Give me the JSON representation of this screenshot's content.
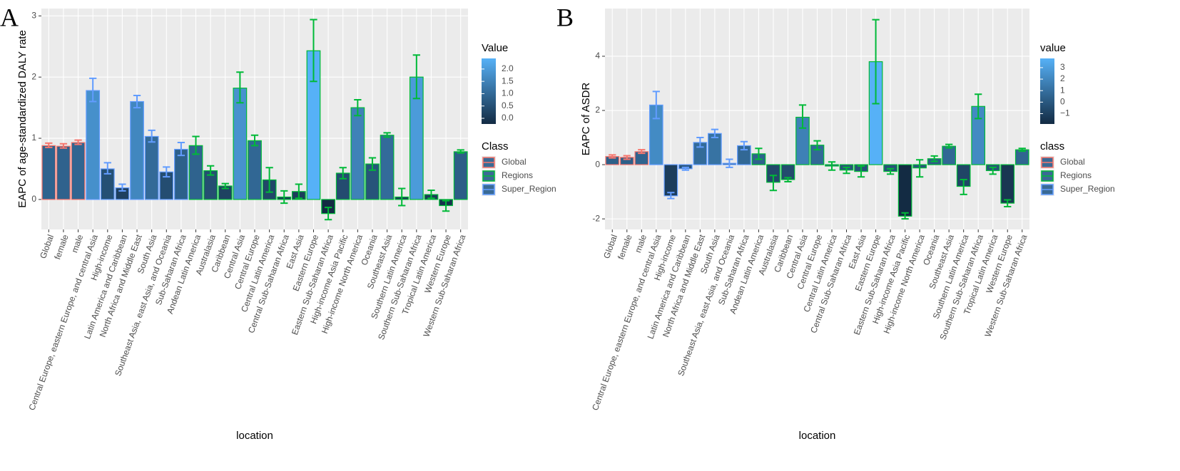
{
  "chart_data": [
    {
      "type": "bar",
      "panel": "A",
      "y_label": "EAPC of age-standardized DALY rate",
      "x_label": "location",
      "categories": [
        "Global",
        "female",
        "male",
        "Central Europe, eastern Europe, and central Asia",
        "High-income",
        "Latin America and Caribbean",
        "North Africa and Middle East",
        "South Asia",
        "Southeast Asia, east Asia, and Oceania",
        "Sub-Saharan Africa",
        "Andean Latin America",
        "Australasia",
        "Caribbean",
        "Central Asia",
        "Central Europe",
        "Central Latin America",
        "Central Sub-Saharan Africa",
        "East Asia",
        "Eastern Europe",
        "Eastern Sub-Saharan Africa",
        "High-income Asia Pacific",
        "High-income North America",
        "Oceania",
        "Southeast Asia",
        "Southern Latin America",
        "Southern Sub-Saharan Africa",
        "Tropical Latin America",
        "Western Europe",
        "Western Sub-Saharan Africa"
      ],
      "class": [
        "Global",
        "Global",
        "Global",
        "Super_Region",
        "Super_Region",
        "Super_Region",
        "Super_Region",
        "Super_Region",
        "Super_Region",
        "Super_Region",
        "Regions",
        "Regions",
        "Regions",
        "Regions",
        "Regions",
        "Regions",
        "Regions",
        "Regions",
        "Regions",
        "Regions",
        "Regions",
        "Regions",
        "Regions",
        "Regions",
        "Regions",
        "Regions",
        "Regions",
        "Regions",
        "Regions"
      ],
      "values": [
        0.88,
        0.87,
        0.93,
        1.78,
        0.5,
        0.19,
        1.6,
        1.03,
        0.45,
        0.82,
        0.88,
        0.47,
        0.22,
        1.82,
        0.96,
        0.32,
        0.04,
        0.13,
        2.43,
        -0.23,
        0.43,
        1.5,
        0.58,
        1.05,
        0.04,
        2.0,
        0.08,
        -0.1,
        0.78
      ],
      "lower": [
        0.85,
        0.84,
        0.9,
        1.6,
        0.42,
        0.14,
        1.5,
        0.94,
        0.37,
        0.72,
        0.74,
        0.4,
        0.18,
        1.58,
        0.88,
        0.12,
        -0.06,
        0.02,
        1.93,
        -0.33,
        0.34,
        1.37,
        0.48,
        1.02,
        -0.1,
        1.65,
        0.02,
        -0.19,
        0.76
      ],
      "upper": [
        0.92,
        0.91,
        0.97,
        1.98,
        0.6,
        0.25,
        1.7,
        1.13,
        0.53,
        0.93,
        1.03,
        0.55,
        0.26,
        2.08,
        1.05,
        0.52,
        0.14,
        0.25,
        2.94,
        -0.13,
        0.52,
        1.63,
        0.68,
        1.09,
        0.18,
        2.36,
        0.15,
        -0.02,
        0.81
      ],
      "ylim": [
        -0.49,
        3.12
      ],
      "yticks": [
        0,
        1,
        2,
        3
      ],
      "grid": true,
      "fill_legend": {
        "title": "Value",
        "low": "#132B43",
        "high": "#56B1F7",
        "ticks": [
          {
            "value": 0,
            "label": "0.0"
          },
          {
            "value": 0.5,
            "label": "0.5"
          },
          {
            "value": 1,
            "label": "1.0"
          },
          {
            "value": 1.5,
            "label": "1.5"
          },
          {
            "value": 2,
            "label": "2.0"
          }
        ]
      },
      "class_legend": {
        "title": "Class",
        "names": [
          "Global",
          "Regions",
          "Super_Region"
        ],
        "colors": [
          "#F8766D",
          "#00BA38",
          "#619CFF"
        ]
      }
    },
    {
      "type": "bar",
      "panel": "B",
      "y_label": "EAPC of ASDR",
      "x_label": "location",
      "categories": [
        "Global",
        "female",
        "male",
        "Central Europe, eastern Europe, and central Asia",
        "High-income",
        "Latin America and Caribbean",
        "North Africa and Middle East",
        "South Asia",
        "Southeast Asia, east Asia, and Oceania",
        "Sub-Saharan Africa",
        "Andean Latin America",
        "Australasia",
        "Caribbean",
        "Central Asia",
        "Central Europe",
        "Central Latin America",
        "Central Sub-Saharan Africa",
        "East Asia",
        "Eastern Europe",
        "Eastern Sub-Saharan Africa",
        "High-income Asia Pacific",
        "High-income North America",
        "Oceania",
        "Southeast Asia",
        "Southern Latin America",
        "Southern Sub-Saharan Africa",
        "Tropical Latin America",
        "Western Europe",
        "Western Sub-Saharan Africa"
      ],
      "class": [
        "Global",
        "Global",
        "Global",
        "Super_Region",
        "Super_Region",
        "Super_Region",
        "Super_Region",
        "Super_Region",
        "Super_Region",
        "Super_Region",
        "Regions",
        "Regions",
        "Regions",
        "Regions",
        "Regions",
        "Regions",
        "Regions",
        "Regions",
        "Regions",
        "Regions",
        "Regions",
        "Regions",
        "Regions",
        "Regions",
        "Regions",
        "Regions",
        "Regions",
        "Regions",
        "Regions"
      ],
      "values": [
        0.3,
        0.27,
        0.48,
        2.2,
        -1.15,
        -0.15,
        0.82,
        1.15,
        0.05,
        0.7,
        0.4,
        -0.65,
        -0.55,
        1.75,
        0.72,
        -0.05,
        -0.2,
        -0.25,
        3.8,
        -0.25,
        -1.9,
        -0.12,
        0.22,
        0.68,
        -0.8,
        2.15,
        -0.22,
        -1.42,
        0.55
      ],
      "lower": [
        0.25,
        0.2,
        0.42,
        1.7,
        -1.25,
        -0.2,
        0.65,
        1.0,
        -0.1,
        0.55,
        0.2,
        -0.95,
        -0.63,
        1.35,
        0.55,
        -0.2,
        -0.32,
        -0.45,
        2.25,
        -0.35,
        -2.0,
        -0.45,
        0.12,
        0.62,
        -1.1,
        1.7,
        -0.35,
        -1.55,
        0.5
      ],
      "upper": [
        0.36,
        0.33,
        0.55,
        2.7,
        -1.03,
        -0.1,
        1.0,
        1.3,
        0.2,
        0.85,
        0.6,
        -0.4,
        -0.48,
        2.2,
        0.88,
        0.1,
        -0.1,
        -0.05,
        5.35,
        -0.15,
        -1.78,
        0.18,
        0.32,
        0.75,
        -0.55,
        2.6,
        -0.1,
        -1.3,
        0.6
      ],
      "ylim": [
        -2.39,
        5.76
      ],
      "yticks": [
        -2,
        0,
        2,
        4
      ],
      "grid": true,
      "fill_legend": {
        "title": "value",
        "low": "#132B43",
        "high": "#56B1F7",
        "ticks": [
          3,
          2,
          1,
          0,
          {
            "value": -1,
            "label": "−1"
          }
        ]
      },
      "class_legend": {
        "title": "class",
        "names": [
          "Global",
          "Regions",
          "Super_Region"
        ],
        "colors": [
          "#F8766D",
          "#00BA38",
          "#619CFF"
        ]
      }
    }
  ]
}
